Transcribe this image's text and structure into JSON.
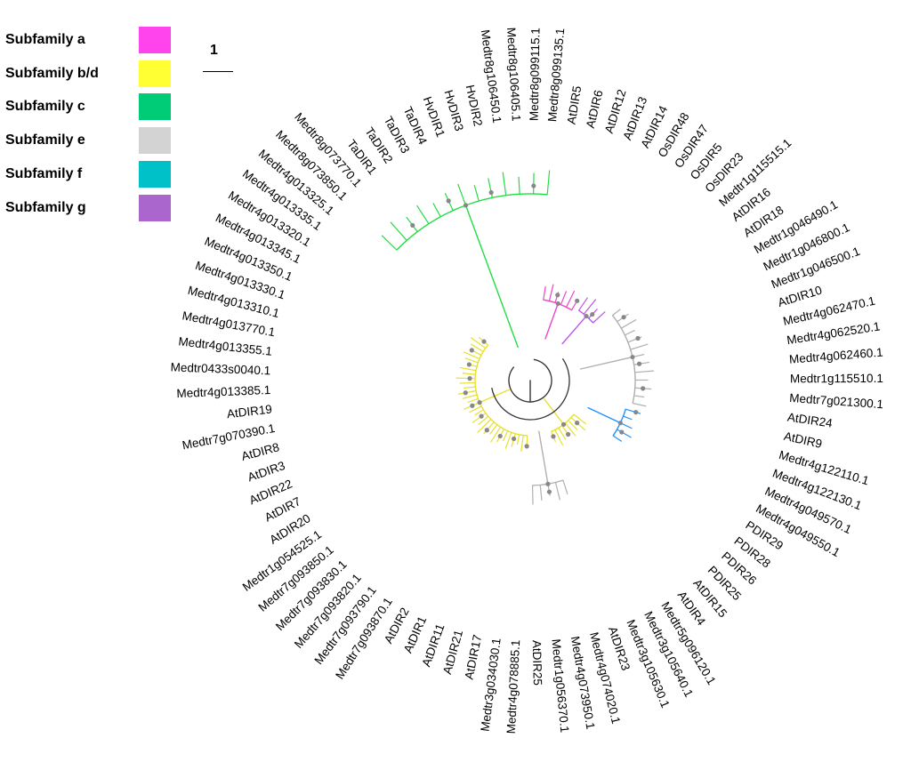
{
  "legend": {
    "items": [
      {
        "label": "Subfamily a",
        "color": "#ff44ee"
      },
      {
        "label": "Subfamily b/d",
        "color": "#ffff33"
      },
      {
        "label": "Subfamily c",
        "color": "#00cc77"
      },
      {
        "label": "Subfamily e",
        "color": "#d3d3d3"
      },
      {
        "label": "Subfamily f",
        "color": "#00c0c8"
      },
      {
        "label": "Subfamily g",
        "color": "#aa66cc"
      }
    ]
  },
  "scale_bar": {
    "label": "1"
  },
  "branch_colors": {
    "a": "#ee44cc",
    "b": "#e8e030",
    "c": "#22dd44",
    "e": "#b0b0b0",
    "f": "#1e90ff",
    "g": "#bb55ee",
    "core": "#333333",
    "node": "#888888"
  },
  "tree": {
    "leaves": [
      {
        "name": "Medtr8g099135.1",
        "clade": "c"
      },
      {
        "name": "AtDIR5",
        "clade": "a"
      },
      {
        "name": "AtDIR6",
        "clade": "a"
      },
      {
        "name": "AtDIR12",
        "clade": "a"
      },
      {
        "name": "AtDIR13",
        "clade": "a"
      },
      {
        "name": "AtDIR14",
        "clade": "a"
      },
      {
        "name": "OsDIR48",
        "clade": "a"
      },
      {
        "name": "OsDIR47",
        "clade": "g"
      },
      {
        "name": "OsDIR5",
        "clade": "g"
      },
      {
        "name": "OsDIR23",
        "clade": "g"
      },
      {
        "name": "Medtr1g115515.1",
        "clade": "g"
      },
      {
        "name": "AtDIR16",
        "clade": "e"
      },
      {
        "name": "AtDIR18",
        "clade": "e"
      },
      {
        "name": "Medtr1g046490.1",
        "clade": "e"
      },
      {
        "name": "Medtr1g046800.1",
        "clade": "e"
      },
      {
        "name": "Medtr1g046500.1",
        "clade": "e"
      },
      {
        "name": "AtDIR10",
        "clade": "e"
      },
      {
        "name": "Medtr4g062470.1",
        "clade": "e"
      },
      {
        "name": "Medtr4g062520.1",
        "clade": "e"
      },
      {
        "name": "Medtr4g062460.1",
        "clade": "e"
      },
      {
        "name": "Medtr1g115510.1",
        "clade": "e"
      },
      {
        "name": "Medtr7g021300.1",
        "clade": "e"
      },
      {
        "name": "AtDIR24",
        "clade": "e"
      },
      {
        "name": "AtDIR9",
        "clade": "e"
      },
      {
        "name": "Medtr4g122110.1",
        "clade": "f"
      },
      {
        "name": "Medtr4g122130.1",
        "clade": "f"
      },
      {
        "name": "Medtr4g049570.1",
        "clade": "f"
      },
      {
        "name": "Medtr4g049550.1",
        "clade": "f"
      },
      {
        "name": "PDIR29",
        "clade": "f"
      },
      {
        "name": "PDIR28",
        "clade": "b"
      },
      {
        "name": "PDIR26",
        "clade": "b"
      },
      {
        "name": "PDIR25",
        "clade": "b"
      },
      {
        "name": "AtDIR15",
        "clade": "b"
      },
      {
        "name": "AtDIR4",
        "clade": "b"
      },
      {
        "name": "Medtr5g096120.1",
        "clade": "b"
      },
      {
        "name": "Medtr3g105640.1",
        "clade": "b"
      },
      {
        "name": "Medtr3g105630.1",
        "clade": "b"
      },
      {
        "name": "AtDIR23",
        "clade": "e"
      },
      {
        "name": "Medtr4g074020.1",
        "clade": "e"
      },
      {
        "name": "Medtr4g073950.1",
        "clade": "e"
      },
      {
        "name": "Medtr1g056370.1",
        "clade": "e"
      },
      {
        "name": "AtDIR25",
        "clade": "e"
      },
      {
        "name": "Medtr4g078885.1",
        "clade": "b"
      },
      {
        "name": "Medtr3g034030.1",
        "clade": "b"
      },
      {
        "name": "AtDIR17",
        "clade": "b"
      },
      {
        "name": "AtDIR21",
        "clade": "b"
      },
      {
        "name": "AtDIR11",
        "clade": "b"
      },
      {
        "name": "AtDIR1",
        "clade": "b"
      },
      {
        "name": "AtDIR2",
        "clade": "b"
      },
      {
        "name": "Medtr7g093870.1",
        "clade": "b"
      },
      {
        "name": "Medtr7g093790.1",
        "clade": "b"
      },
      {
        "name": "Medtr7g093820.1",
        "clade": "b"
      },
      {
        "name": "Medtr7g093830.1",
        "clade": "b"
      },
      {
        "name": "Medtr7g093850.1",
        "clade": "b"
      },
      {
        "name": "Medtr1g054525.1",
        "clade": "b"
      },
      {
        "name": "AtDIR20",
        "clade": "b"
      },
      {
        "name": "AtDIR7",
        "clade": "b"
      },
      {
        "name": "AtDIR22",
        "clade": "b"
      },
      {
        "name": "AtDIR3",
        "clade": "b"
      },
      {
        "name": "AtDIR8",
        "clade": "b"
      },
      {
        "name": "Medtr7g070390.1",
        "clade": "b"
      },
      {
        "name": "AtDIR19",
        "clade": "b"
      },
      {
        "name": "Medtr4g013385.1",
        "clade": "b"
      },
      {
        "name": "Medtr0433s0040.1",
        "clade": "b"
      },
      {
        "name": "Medtr4g013355.1",
        "clade": "b"
      },
      {
        "name": "Medtr4g013770.1",
        "clade": "b"
      },
      {
        "name": "Medtr4g013310.1",
        "clade": "b"
      },
      {
        "name": "Medtr4g013330.1",
        "clade": "b"
      },
      {
        "name": "Medtr4g013350.1",
        "clade": "b"
      },
      {
        "name": "Medtr4g013345.1",
        "clade": "b"
      },
      {
        "name": "Medtr4g013320.1",
        "clade": "b"
      },
      {
        "name": "Medtr4g013335.1",
        "clade": "b"
      },
      {
        "name": "Medtr4g013325.1",
        "clade": "b"
      },
      {
        "name": "Medtr8g073850.1",
        "clade": "c"
      },
      {
        "name": "Medtr8g073770.1",
        "clade": "c"
      },
      {
        "name": "TaDIR1",
        "clade": "c"
      },
      {
        "name": "TaDIR2",
        "clade": "c"
      },
      {
        "name": "TaDIR3",
        "clade": "c"
      },
      {
        "name": "TaDIR4",
        "clade": "c"
      },
      {
        "name": "HvDIR1",
        "clade": "c"
      },
      {
        "name": "HvDIR3",
        "clade": "c"
      },
      {
        "name": "HvDIR2",
        "clade": "c"
      },
      {
        "name": "Medtr8g106450.1",
        "clade": "c"
      },
      {
        "name": "Medtr8g106405.1",
        "clade": "c"
      },
      {
        "name": "Medtr8g099115.1",
        "clade": "c"
      }
    ]
  }
}
